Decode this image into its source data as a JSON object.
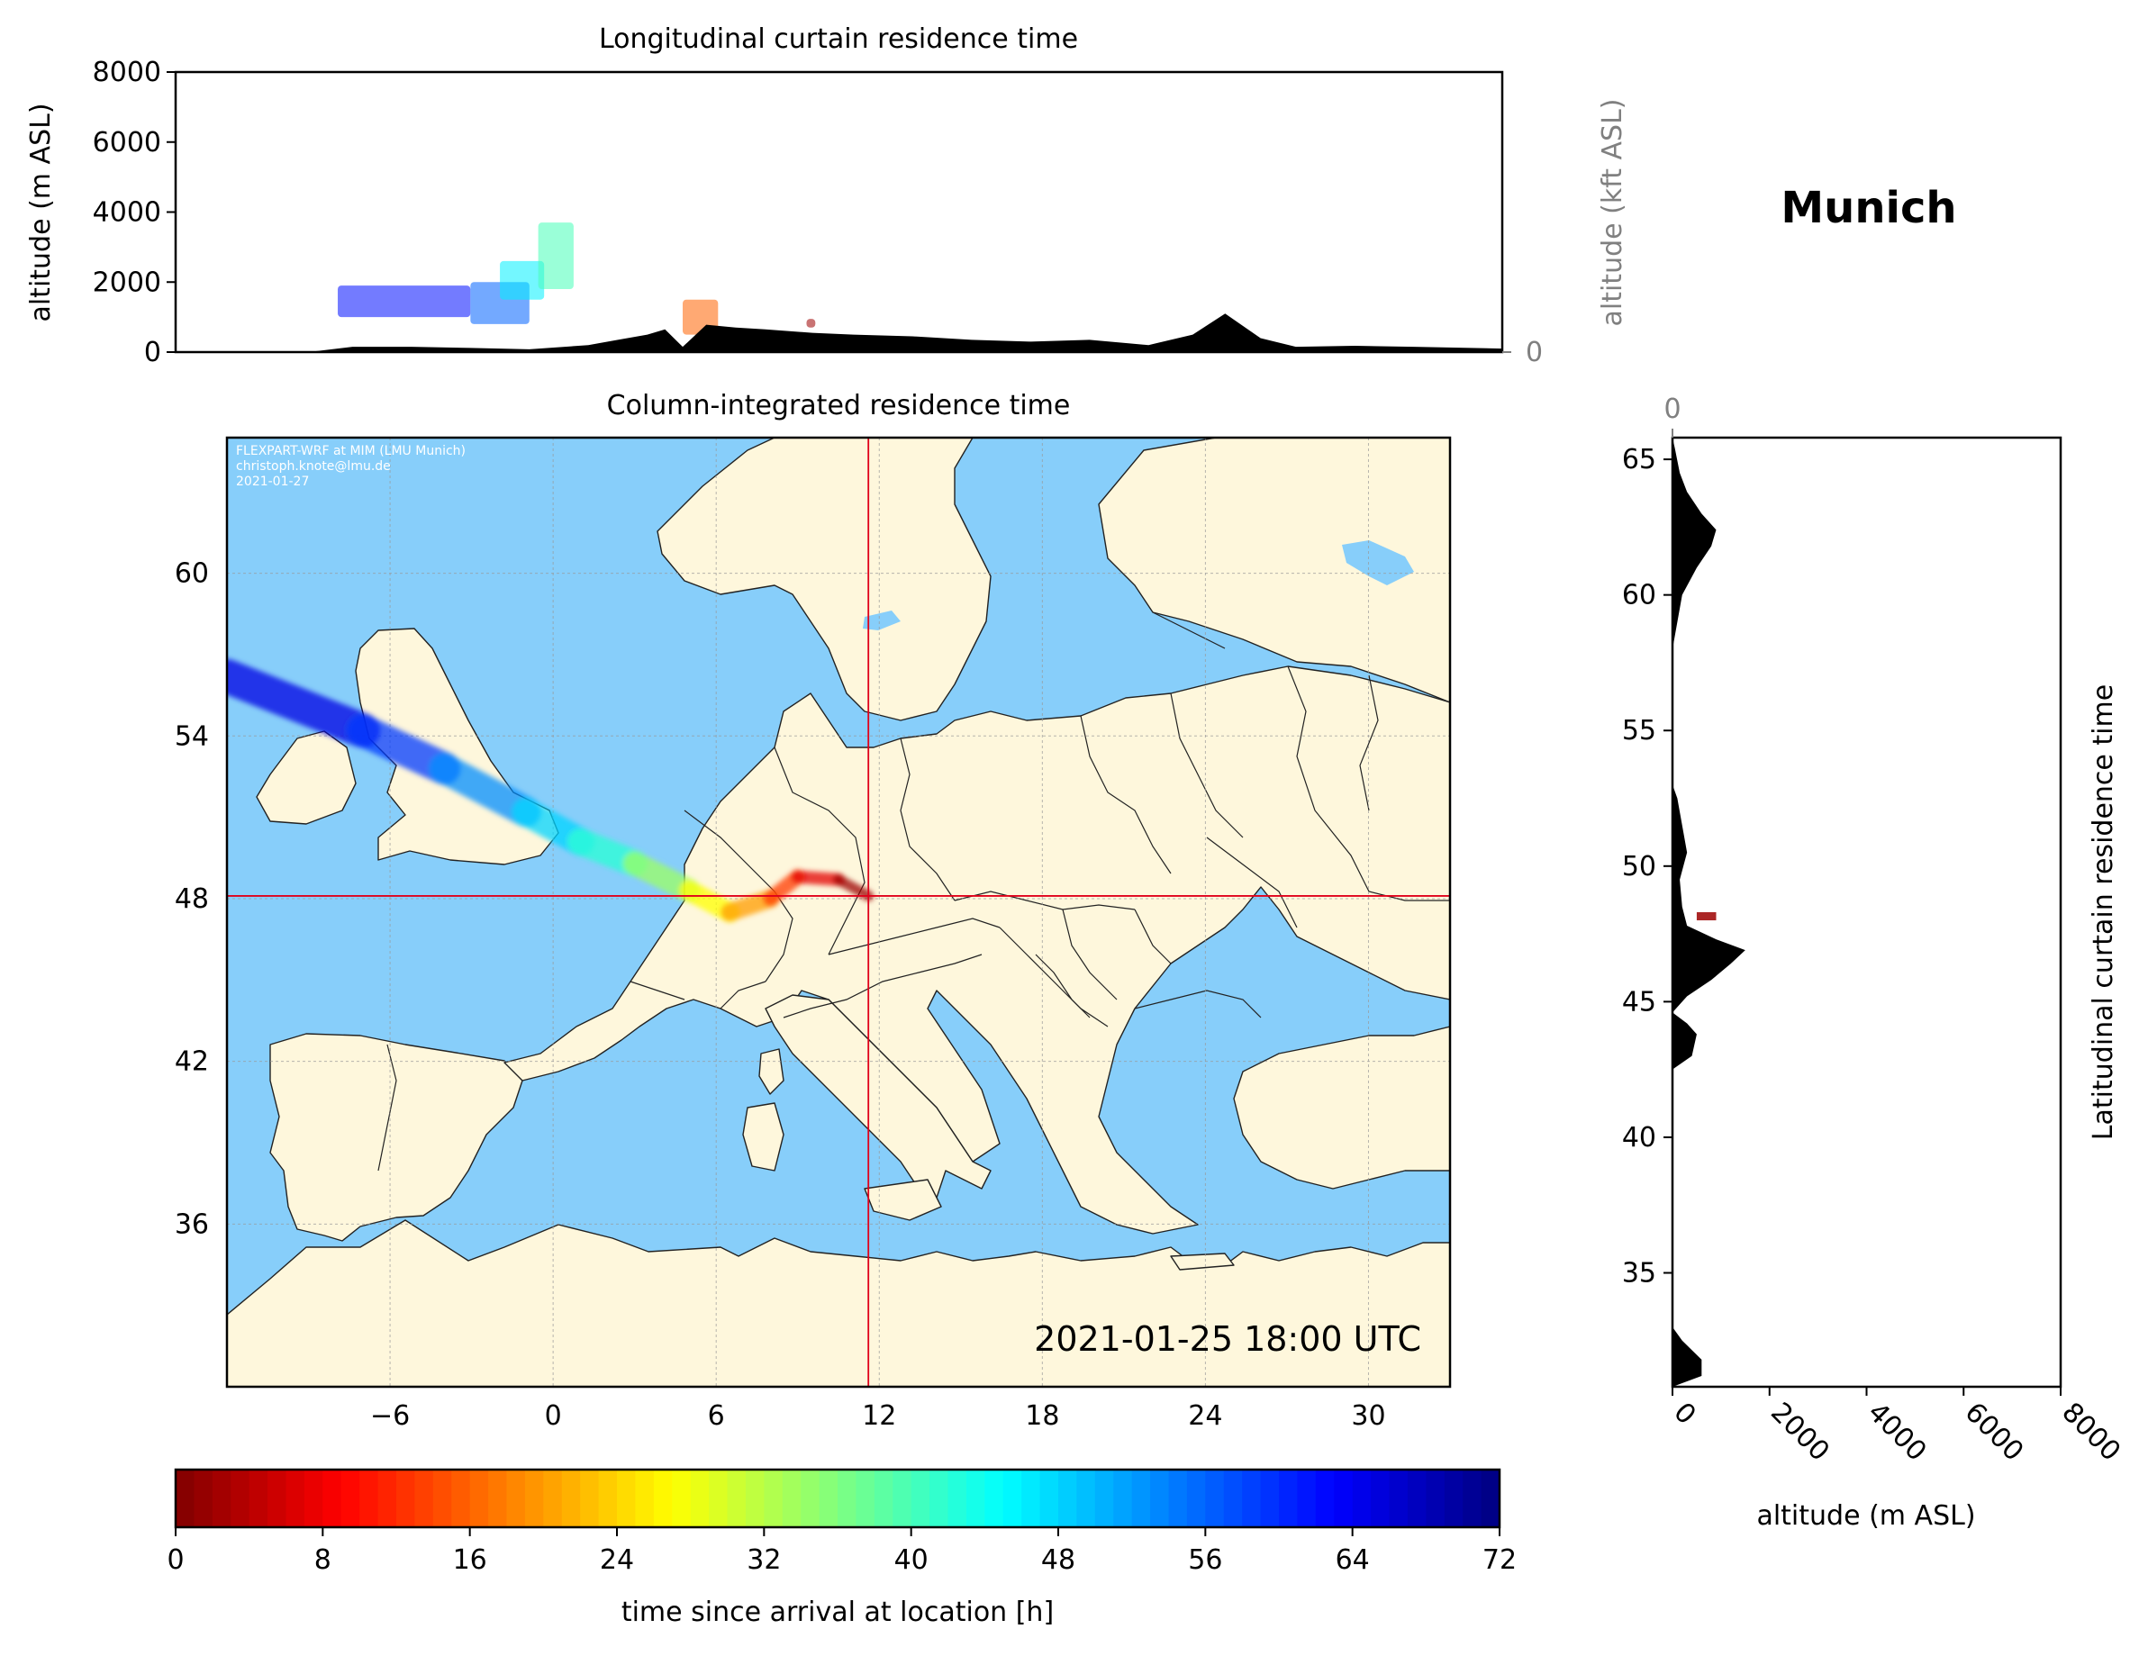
{
  "figure": {
    "location_title": "Munich",
    "timestamp": "2021-01-25 18:00 UTC",
    "credit_lines": [
      "FLEXPART-WRF at MIM (LMU Munich)",
      "christoph.knote@lmu.de",
      "2021-01-27"
    ]
  },
  "colors": {
    "ocean": "#87cefa",
    "land": "#fef7dc",
    "border": "#222222",
    "crosshair": "#e0001a",
    "terrain": "#000000",
    "grid": "#999999",
    "secondary_axis": "#808080"
  },
  "chart_data": [
    {
      "id": "longitudinal",
      "type": "area",
      "title": "Longitudinal curtain residence time",
      "ylabel": "altitude (m ASL)",
      "ylabel2": "altitude (kft ASL)",
      "ylim": [
        0,
        8000
      ],
      "yticks": [
        "0",
        "2000",
        "4000",
        "6000",
        "8000"
      ],
      "y2ticks": [
        "0",
        "50",
        "100"
      ],
      "xlim": [
        -10,
        35
      ],
      "terrain": {
        "x": [
          -10,
          -5.5,
          -4,
          -2,
          0,
          2,
          4,
          5,
          6,
          6.6,
          7.2,
          8,
          9,
          10,
          11.6,
          13,
          15,
          17,
          19,
          21,
          23,
          24.5,
          25.6,
          26.8,
          28,
          30,
          32,
          35
        ],
        "altitude": [
          0,
          0,
          150,
          150,
          120,
          80,
          200,
          350,
          500,
          650,
          150,
          780,
          700,
          650,
          550,
          500,
          450,
          350,
          300,
          350,
          200,
          500,
          1100,
          400,
          150,
          180,
          150,
          100
        ]
      },
      "plume": [
        {
          "lon_range": [
            -4.5,
            0
          ],
          "alt_range": [
            1000,
            1900
          ],
          "age_h": 62
        },
        {
          "lon_range": [
            0,
            2
          ],
          "alt_range": [
            800,
            2000
          ],
          "age_h": 56
        },
        {
          "lon_range": [
            1,
            2.5
          ],
          "alt_range": [
            1500,
            2600
          ],
          "age_h": 46
        },
        {
          "lon_range": [
            2.3,
            3.5
          ],
          "alt_range": [
            1800,
            3700
          ],
          "age_h": 40
        },
        {
          "lon_range": [
            7.2,
            8.4
          ],
          "alt_range": [
            500,
            1500
          ],
          "age_h": 16
        },
        {
          "lon_range": [
            11.4,
            11.7
          ],
          "alt_range": [
            700,
            950
          ],
          "age_h": 2
        }
      ]
    },
    {
      "id": "column",
      "type": "heatmap",
      "title": "Column-integrated residence time",
      "xlim": [
        -12,
        33
      ],
      "ylim": [
        30,
        65
      ],
      "xticks": [
        "−6",
        "0",
        "6",
        "12",
        "18",
        "24",
        "30"
      ],
      "yticks": [
        "36",
        "42",
        "48",
        "54",
        "60"
      ],
      "receptor": {
        "lon": 11.6,
        "lat": 48.1
      },
      "plume": [
        {
          "lon": -12,
          "lat": 56.2,
          "age_h": 68
        },
        {
          "lon": -7,
          "lat": 54.2,
          "age_h": 62
        },
        {
          "lon": -4,
          "lat": 52.8,
          "age_h": 56
        },
        {
          "lon": -1,
          "lat": 51.2,
          "age_h": 50
        },
        {
          "lon": 1,
          "lat": 50.1,
          "age_h": 46
        },
        {
          "lon": 3,
          "lat": 49.3,
          "age_h": 38
        },
        {
          "lon": 5,
          "lat": 48.3,
          "age_h": 30
        },
        {
          "lon": 6.5,
          "lat": 47.5,
          "age_h": 24
        },
        {
          "lon": 8,
          "lat": 48.0,
          "age_h": 16
        },
        {
          "lon": 9,
          "lat": 48.8,
          "age_h": 10
        },
        {
          "lon": 10.5,
          "lat": 48.7,
          "age_h": 4
        },
        {
          "lon": 11.6,
          "lat": 48.1,
          "age_h": 0
        }
      ]
    },
    {
      "id": "latitudinal",
      "type": "area",
      "title": "Latitudinal curtain residence time",
      "xlabel": "altitude (m ASL)",
      "xlim": [
        0,
        8000
      ],
      "xticks": [
        "0",
        "2000",
        "4000",
        "6000",
        "8000"
      ],
      "x2ticks": [
        "0",
        "50",
        "100"
      ],
      "ylim": [
        30.8,
        65.8
      ],
      "yticks": [
        "35",
        "40",
        "45",
        "50",
        "55",
        "60",
        "65"
      ],
      "terrain": {
        "lat": [
          30.8,
          31.2,
          31.8,
          32.5,
          33,
          38,
          42.5,
          43,
          43.8,
          44.2,
          44.6,
          45.2,
          45.8,
          46.4,
          46.9,
          47.3,
          47.8,
          48.5,
          49.5,
          50.5,
          51.5,
          52.5,
          53,
          55,
          58,
          60,
          61,
          61.8,
          62.4,
          63,
          63.8,
          64.5,
          65.4,
          65.8
        ],
        "altitude": [
          0,
          600,
          600,
          200,
          0,
          0,
          0,
          400,
          500,
          300,
          0,
          300,
          800,
          1200,
          1500,
          900,
          300,
          200,
          150,
          300,
          200,
          100,
          0,
          0,
          0,
          200,
          500,
          800,
          900,
          600,
          300,
          150,
          50,
          0
        ]
      },
      "plume": [
        {
          "lat_range": [
            48.0,
            48.3
          ],
          "alt_range": [
            500,
            900
          ],
          "age_h": 2
        }
      ]
    }
  ],
  "colorbar": {
    "label": "time since arrival at location [h]",
    "ticks": [
      "0",
      "8",
      "16",
      "24",
      "32",
      "40",
      "48",
      "56",
      "64",
      "72"
    ],
    "range": [
      0,
      72
    ],
    "colormap": "jet"
  }
}
